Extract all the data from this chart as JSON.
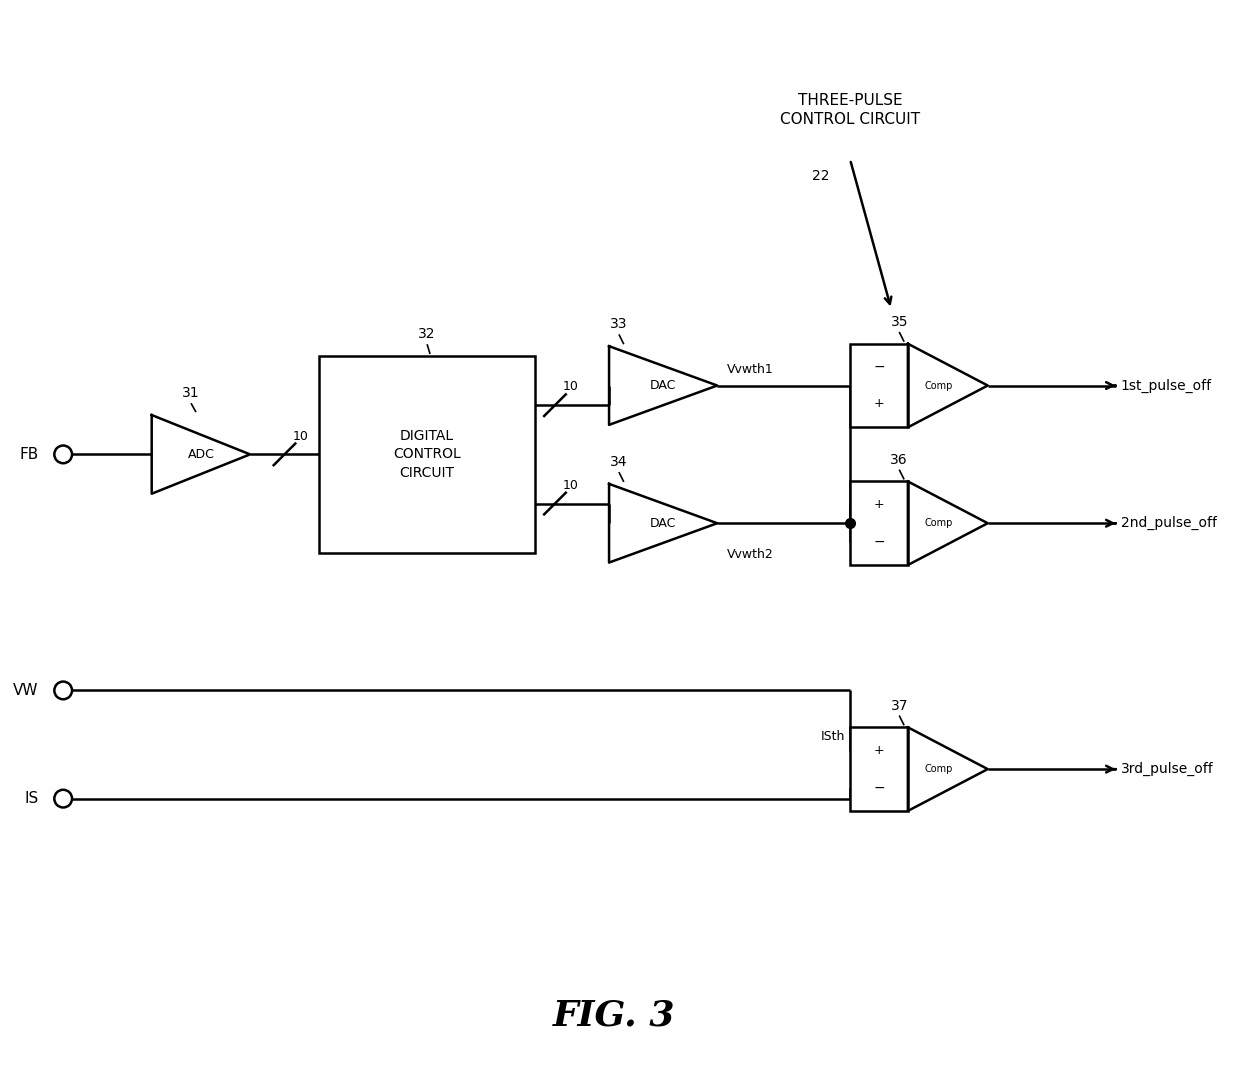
{
  "title": "FIG. 3",
  "top_label_line1": "THREE-PULSE",
  "top_label_line2": "CONTROL CIRCUIT",
  "bg_color": "#ffffff",
  "line_color": "#000000",
  "text_color": "#000000",
  "fig_width": 12.4,
  "fig_height": 10.73,
  "labels": {
    "FB": "FB",
    "VW": "VW",
    "IS": "IS",
    "ADC": "ADC",
    "DCC": "DIGITAL\nCONTROL\nCIRCUIT",
    "DAC1": "DAC",
    "DAC2": "DAC",
    "Vvwth1": "Vvwth1",
    "Vvwth2": "Vvwth2",
    "ISth": "ISth",
    "out1": "1st_pulse_off",
    "out2": "2nd_pulse_off",
    "out3": "3rd_pulse_off",
    "comp": "Comp",
    "n31": "31",
    "n32": "32",
    "n33": "33",
    "n34": "34",
    "n35": "35",
    "n36": "36",
    "n37": "37",
    "n22": "22",
    "b10": "10"
  }
}
